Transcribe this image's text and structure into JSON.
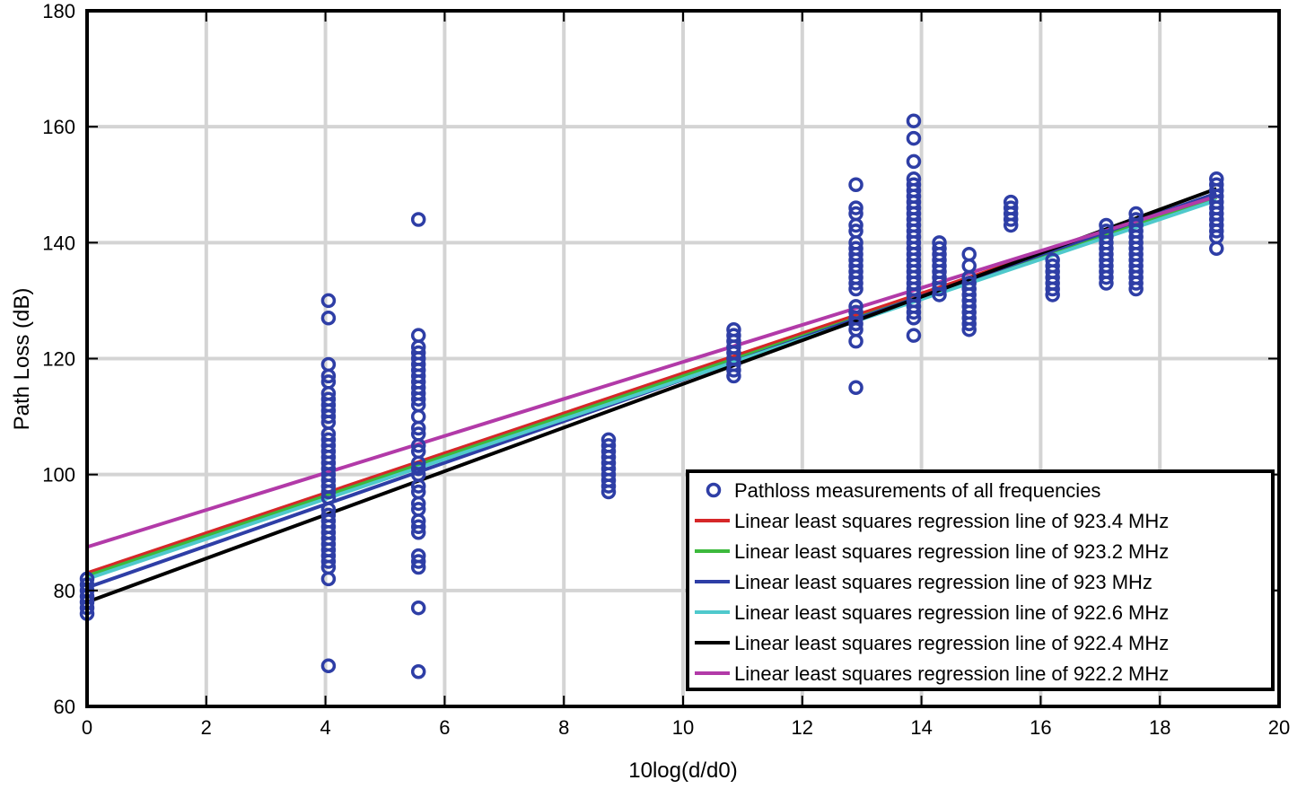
{
  "chart_data": {
    "type": "scatter",
    "title": "",
    "xlabel": "10log(d/d0)",
    "ylabel": "Path Loss (dB)",
    "xlim": [
      0,
      20
    ],
    "ylim": [
      60,
      180
    ],
    "xticks": [
      0,
      2,
      4,
      6,
      8,
      10,
      12,
      14,
      16,
      18,
      20
    ],
    "yticks": [
      60,
      80,
      100,
      120,
      140,
      160,
      180
    ],
    "grid": true,
    "legend_position": "bottom-right",
    "scatter": {
      "name": "Pathloss measurements of all frequencies",
      "color": "#2e3ea6",
      "points": [
        [
          0,
          76
        ],
        [
          0,
          77
        ],
        [
          0,
          78
        ],
        [
          0,
          79
        ],
        [
          0,
          80
        ],
        [
          0,
          81
        ],
        [
          0,
          82
        ],
        [
          4.05,
          67
        ],
        [
          4.05,
          82
        ],
        [
          4.05,
          84
        ],
        [
          4.05,
          85
        ],
        [
          4.05,
          86
        ],
        [
          4.05,
          87
        ],
        [
          4.05,
          88
        ],
        [
          4.05,
          89
        ],
        [
          4.05,
          90
        ],
        [
          4.05,
          91
        ],
        [
          4.05,
          92
        ],
        [
          4.05,
          93
        ],
        [
          4.05,
          94
        ],
        [
          4.05,
          96
        ],
        [
          4.05,
          97
        ],
        [
          4.05,
          98
        ],
        [
          4.05,
          99
        ],
        [
          4.05,
          100
        ],
        [
          4.05,
          101
        ],
        [
          4.05,
          102
        ],
        [
          4.05,
          103
        ],
        [
          4.05,
          104
        ],
        [
          4.05,
          105
        ],
        [
          4.05,
          106
        ],
        [
          4.05,
          107
        ],
        [
          4.05,
          109
        ],
        [
          4.05,
          110
        ],
        [
          4.05,
          111
        ],
        [
          4.05,
          112
        ],
        [
          4.05,
          113
        ],
        [
          4.05,
          114
        ],
        [
          4.05,
          116
        ],
        [
          4.05,
          117
        ],
        [
          4.05,
          119
        ],
        [
          4.05,
          127
        ],
        [
          4.05,
          130
        ],
        [
          5.56,
          66
        ],
        [
          5.56,
          77
        ],
        [
          5.56,
          84
        ],
        [
          5.56,
          85
        ],
        [
          5.56,
          86
        ],
        [
          5.56,
          90
        ],
        [
          5.56,
          91
        ],
        [
          5.56,
          92
        ],
        [
          5.56,
          94
        ],
        [
          5.56,
          95
        ],
        [
          5.56,
          97
        ],
        [
          5.56,
          98
        ],
        [
          5.56,
          100
        ],
        [
          5.56,
          101
        ],
        [
          5.56,
          102
        ],
        [
          5.56,
          104
        ],
        [
          5.56,
          105
        ],
        [
          5.56,
          107
        ],
        [
          5.56,
          108
        ],
        [
          5.56,
          110
        ],
        [
          5.56,
          112
        ],
        [
          5.56,
          113
        ],
        [
          5.56,
          114
        ],
        [
          5.56,
          115
        ],
        [
          5.56,
          116
        ],
        [
          5.56,
          117
        ],
        [
          5.56,
          118
        ],
        [
          5.56,
          119
        ],
        [
          5.56,
          120
        ],
        [
          5.56,
          121
        ],
        [
          5.56,
          122
        ],
        [
          5.56,
          124
        ],
        [
          5.56,
          144
        ],
        [
          8.75,
          97
        ],
        [
          8.75,
          98
        ],
        [
          8.75,
          99
        ],
        [
          8.75,
          100
        ],
        [
          8.75,
          101
        ],
        [
          8.75,
          102
        ],
        [
          8.75,
          103
        ],
        [
          8.75,
          104
        ],
        [
          8.75,
          105
        ],
        [
          8.75,
          106
        ],
        [
          10.85,
          117
        ],
        [
          10.85,
          118
        ],
        [
          10.85,
          119
        ],
        [
          10.85,
          120
        ],
        [
          10.85,
          121
        ],
        [
          10.85,
          122
        ],
        [
          10.85,
          123
        ],
        [
          10.85,
          124
        ],
        [
          10.85,
          125
        ],
        [
          12.9,
          115
        ],
        [
          12.9,
          123
        ],
        [
          12.9,
          125
        ],
        [
          12.9,
          126
        ],
        [
          12.9,
          127
        ],
        [
          12.9,
          128
        ],
        [
          12.9,
          129
        ],
        [
          12.9,
          132
        ],
        [
          12.9,
          133
        ],
        [
          12.9,
          134
        ],
        [
          12.9,
          135
        ],
        [
          12.9,
          136
        ],
        [
          12.9,
          137
        ],
        [
          12.9,
          138
        ],
        [
          12.9,
          139
        ],
        [
          12.9,
          140
        ],
        [
          12.9,
          142
        ],
        [
          12.9,
          143
        ],
        [
          12.9,
          145
        ],
        [
          12.9,
          146
        ],
        [
          12.9,
          150
        ],
        [
          13.87,
          124
        ],
        [
          13.87,
          127
        ],
        [
          13.87,
          128
        ],
        [
          13.87,
          129
        ],
        [
          13.87,
          130
        ],
        [
          13.87,
          131
        ],
        [
          13.87,
          132
        ],
        [
          13.87,
          133
        ],
        [
          13.87,
          134
        ],
        [
          13.87,
          135
        ],
        [
          13.87,
          136
        ],
        [
          13.87,
          137
        ],
        [
          13.87,
          138
        ],
        [
          13.87,
          139
        ],
        [
          13.87,
          140
        ],
        [
          13.87,
          141
        ],
        [
          13.87,
          142
        ],
        [
          13.87,
          143
        ],
        [
          13.87,
          144
        ],
        [
          13.87,
          145
        ],
        [
          13.87,
          146
        ],
        [
          13.87,
          147
        ],
        [
          13.87,
          148
        ],
        [
          13.87,
          149
        ],
        [
          13.87,
          150
        ],
        [
          13.87,
          151
        ],
        [
          13.87,
          154
        ],
        [
          13.87,
          158
        ],
        [
          13.87,
          161
        ],
        [
          14.3,
          131
        ],
        [
          14.3,
          132
        ],
        [
          14.3,
          133
        ],
        [
          14.3,
          134
        ],
        [
          14.3,
          135
        ],
        [
          14.3,
          136
        ],
        [
          14.3,
          137
        ],
        [
          14.3,
          138
        ],
        [
          14.3,
          139
        ],
        [
          14.3,
          140
        ],
        [
          14.8,
          125
        ],
        [
          14.8,
          126
        ],
        [
          14.8,
          127
        ],
        [
          14.8,
          128
        ],
        [
          14.8,
          129
        ],
        [
          14.8,
          130
        ],
        [
          14.8,
          131
        ],
        [
          14.8,
          132
        ],
        [
          14.8,
          133
        ],
        [
          14.8,
          134
        ],
        [
          14.8,
          136
        ],
        [
          14.8,
          138
        ],
        [
          15.5,
          143
        ],
        [
          15.5,
          144
        ],
        [
          15.5,
          145
        ],
        [
          15.5,
          146
        ],
        [
          15.5,
          147
        ],
        [
          16.2,
          131
        ],
        [
          16.2,
          132
        ],
        [
          16.2,
          133
        ],
        [
          16.2,
          134
        ],
        [
          16.2,
          135
        ],
        [
          16.2,
          136
        ],
        [
          16.2,
          137
        ],
        [
          17.1,
          133
        ],
        [
          17.1,
          134
        ],
        [
          17.1,
          135
        ],
        [
          17.1,
          136
        ],
        [
          17.1,
          137
        ],
        [
          17.1,
          138
        ],
        [
          17.1,
          139
        ],
        [
          17.1,
          140
        ],
        [
          17.1,
          141
        ],
        [
          17.1,
          142
        ],
        [
          17.1,
          143
        ],
        [
          17.6,
          132
        ],
        [
          17.6,
          133
        ],
        [
          17.6,
          134
        ],
        [
          17.6,
          135
        ],
        [
          17.6,
          136
        ],
        [
          17.6,
          137
        ],
        [
          17.6,
          138
        ],
        [
          17.6,
          139
        ],
        [
          17.6,
          140
        ],
        [
          17.6,
          141
        ],
        [
          17.6,
          142
        ],
        [
          17.6,
          143
        ],
        [
          17.6,
          144
        ],
        [
          17.6,
          145
        ],
        [
          18.95,
          139
        ],
        [
          18.95,
          141
        ],
        [
          18.95,
          142
        ],
        [
          18.95,
          143
        ],
        [
          18.95,
          144
        ],
        [
          18.95,
          145
        ],
        [
          18.95,
          146
        ],
        [
          18.95,
          147
        ],
        [
          18.95,
          148
        ],
        [
          18.95,
          149
        ],
        [
          18.95,
          150
        ],
        [
          18.95,
          151
        ]
      ]
    },
    "series": [
      {
        "name": "Linear least squares regression line of 923.4 MHz",
        "color": "#d62728",
        "x": [
          0,
          18.95
        ],
        "y": [
          83.0,
          148.3
        ]
      },
      {
        "name": "Linear least squares regression line of 923.2 MHz",
        "color": "#3cb93c",
        "x": [
          0,
          18.95
        ],
        "y": [
          82.5,
          147.8
        ]
      },
      {
        "name": "Linear least squares regression line of 923 MHz",
        "color": "#2e3ea6",
        "x": [
          0,
          18.95
        ],
        "y": [
          80.5,
          148.5
        ]
      },
      {
        "name": "Linear least squares regression line of 922.6 MHz",
        "color": "#4fc9cc",
        "x": [
          0,
          18.95
        ],
        "y": [
          82.0,
          147.3
        ]
      },
      {
        "name": "Linear least squares regression line of 922.4 MHz",
        "color": "#000000",
        "x": [
          0,
          18.95
        ],
        "y": [
          78.0,
          149.3
        ]
      },
      {
        "name": "Linear least squares regression line of 922.2 MHz",
        "color": "#b23aa8",
        "x": [
          0,
          18.95
        ],
        "y": [
          87.5,
          148.0
        ]
      }
    ]
  }
}
